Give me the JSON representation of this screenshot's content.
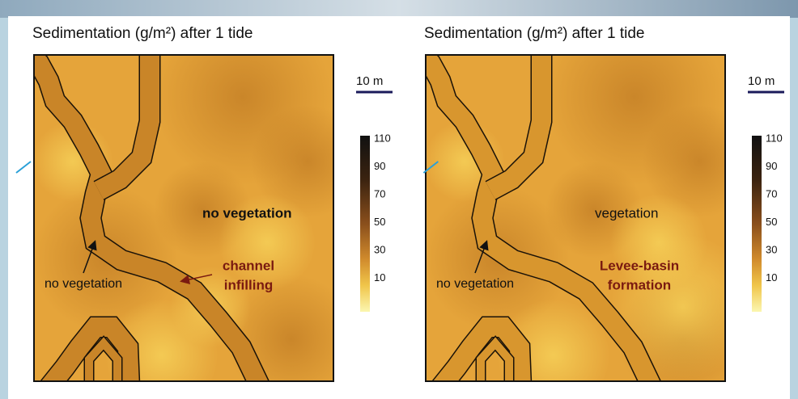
{
  "panels": [
    {
      "title": "Sedimentation (g/m²) after 1 tide",
      "scale_bar": "10 m",
      "colorbar_ticks": [
        "110",
        "90",
        "70",
        "50",
        "30",
        "10"
      ],
      "main_label": "no vegetation",
      "channel_label": "no vegetation",
      "process_label": [
        "channel",
        "infilling"
      ]
    },
    {
      "title": "Sedimentation (g/m²) after 1 tide",
      "scale_bar": "10 m",
      "colorbar_ticks": [
        "110",
        "90",
        "70",
        "50",
        "30",
        "10"
      ],
      "main_label": "vegetation",
      "channel_label": "no vegetation",
      "process_label": [
        "Levee-basin",
        "formation"
      ]
    }
  ]
}
